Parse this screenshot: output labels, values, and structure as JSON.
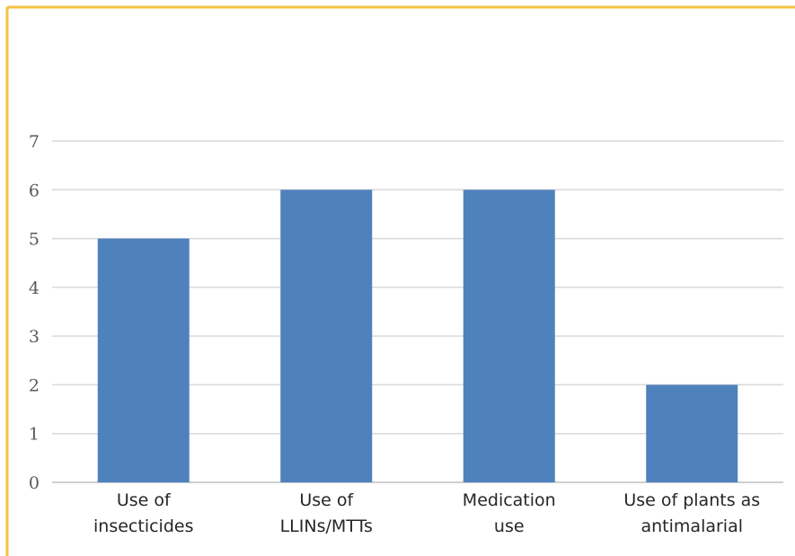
{
  "chart_data": {
    "type": "bar",
    "categories": [
      "Use of insecticides",
      "Use of LLINs/MTTs",
      "Medication use",
      "Use of plants as antimalarial"
    ],
    "category_label_lines": [
      [
        "Use of",
        "insecticides"
      ],
      [
        "Use of",
        "LLINs/MTTs"
      ],
      [
        "Medication",
        "use"
      ],
      [
        "Use of plants as",
        "antimalarial"
      ]
    ],
    "values": [
      5,
      6,
      6,
      2
    ],
    "title": "",
    "xlabel": "",
    "ylabel": "",
    "ylim": [
      0,
      7
    ],
    "yticks": [
      0,
      1,
      2,
      3,
      4,
      5,
      6,
      7
    ],
    "grid": true,
    "legend": "none",
    "colors": {
      "bar": "#4f81bd",
      "frame": "#f5c242",
      "grid": "#d9d9d9",
      "axis": "#bfbfbf"
    }
  }
}
